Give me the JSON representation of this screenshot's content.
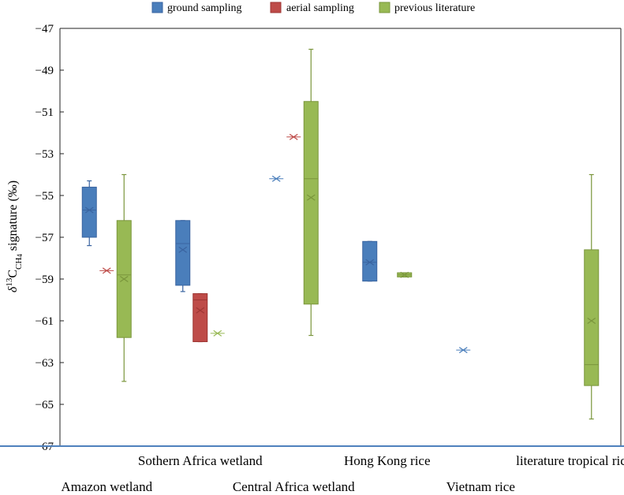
{
  "chart_data": {
    "type": "box",
    "title": "",
    "ylabel": {
      "prefix": "δ",
      "superscript": "13",
      "main": "C",
      "subscript_1": "CH",
      "subscript_2": "4",
      "suffix": " signature (‰)"
    },
    "ylim": [
      -67,
      -47
    ],
    "yticks": [
      "−47",
      "−49",
      "−51",
      "−53",
      "−55",
      "−57",
      "−59",
      "−61",
      "−63",
      "−65",
      "−67"
    ],
    "ytick_values": [
      -47,
      -49,
      -51,
      -53,
      -55,
      -57,
      -59,
      -61,
      -63,
      -65,
      -67
    ],
    "legend": [
      {
        "name": "ground sampling",
        "color": "#4a7ebb"
      },
      {
        "name": "aerial sampling",
        "color": "#be4b48"
      },
      {
        "name": "previous literature",
        "color": "#98b954"
      }
    ],
    "colors": {
      "ground": {
        "fill": "#4a7ebb",
        "stroke": "#3a64a0"
      },
      "aerial": {
        "fill": "#be4b48",
        "stroke": "#9e3633"
      },
      "literature": {
        "fill": "#98b954",
        "stroke": "#7a963c"
      },
      "axis": "#4f81bd"
    },
    "categories": [
      "Amazon wetland",
      "Sothern Africa wetland",
      "Central Africa wetland",
      "Hong Kong rice",
      "Vietnam rice",
      "literature tropical rice"
    ],
    "category_label_rows": [
      2,
      1,
      2,
      1,
      2,
      1
    ],
    "series": [
      {
        "name": "ground sampling",
        "key": "ground",
        "boxes": [
          {
            "category": 0,
            "min": -57.4,
            "q1": -57.0,
            "median": -55.7,
            "q3": -54.6,
            "max": -54.3,
            "mean": -55.7
          },
          {
            "category": 1,
            "min": -59.6,
            "q1": -59.3,
            "median": -57.3,
            "q3": -56.2,
            "max": -56.2,
            "mean": -57.6
          },
          {
            "category": 2,
            "min": -54.2,
            "q1": -54.2,
            "median": -54.2,
            "q3": -54.2,
            "max": -54.2,
            "mean": -54.2
          },
          {
            "category": 3,
            "min": -59.1,
            "q1": -59.1,
            "median": -58.2,
            "q3": -57.2,
            "max": -57.2,
            "mean": -58.2
          },
          {
            "category": 4,
            "min": -62.4,
            "q1": -62.4,
            "median": -62.4,
            "q3": -62.4,
            "max": -62.4,
            "mean": -62.4
          }
        ]
      },
      {
        "name": "aerial sampling",
        "key": "aerial",
        "boxes": [
          {
            "category": 0,
            "min": -58.6,
            "q1": -58.6,
            "median": -58.6,
            "q3": -58.6,
            "max": -58.6,
            "mean": -58.6
          },
          {
            "category": 1,
            "min": -62.0,
            "q1": -62.0,
            "median": -60.0,
            "q3": -59.7,
            "max": -59.7,
            "mean": -60.5
          },
          {
            "category": 2,
            "min": -52.2,
            "q1": -52.2,
            "median": -52.2,
            "q3": -52.2,
            "max": -52.2,
            "mean": -52.2
          }
        ]
      },
      {
        "name": "previous literature",
        "key": "literature",
        "boxes": [
          {
            "category": 0,
            "min": -63.9,
            "q1": -61.8,
            "median": -58.8,
            "q3": -56.2,
            "max": -54.0,
            "mean": -59.0
          },
          {
            "category": 1,
            "min": -61.6,
            "q1": -61.6,
            "median": -61.6,
            "q3": -61.6,
            "max": -61.6,
            "mean": -61.6
          },
          {
            "category": 2,
            "min": -61.7,
            "q1": -60.2,
            "median": -54.2,
            "q3": -50.5,
            "max": -48.0,
            "mean": -55.1
          },
          {
            "category": 3,
            "min": -58.9,
            "q1": -58.9,
            "median": -58.8,
            "q3": -58.7,
            "max": -58.7,
            "mean": -58.8
          },
          {
            "category": 5,
            "min": -65.7,
            "q1": -64.1,
            "median": -63.1,
            "q3": -57.6,
            "max": -54.0,
            "mean": -61.0
          }
        ]
      }
    ]
  }
}
